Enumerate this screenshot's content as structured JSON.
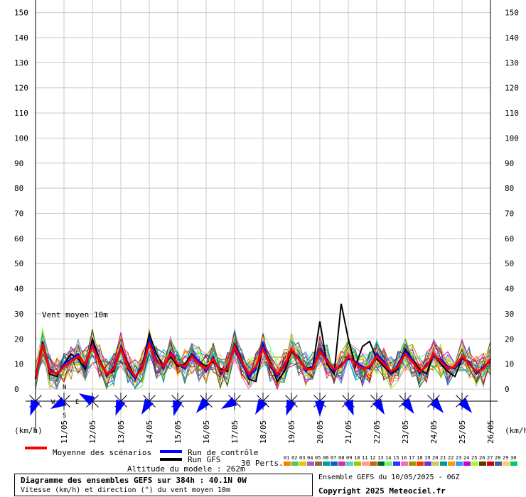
{
  "chart_data": {
    "type": "line",
    "annotation": "Vent moyen 10m",
    "unit_left": "(km/h)",
    "unit_right": "(km/h)",
    "ylim": [
      0,
      155
    ],
    "yticks": [
      0,
      10,
      20,
      30,
      40,
      50,
      60,
      70,
      80,
      90,
      100,
      110,
      120,
      130,
      140,
      150
    ],
    "xlim": [
      0,
      64
    ],
    "date_ticks": [
      {
        "x": 4,
        "label": "11/05"
      },
      {
        "x": 8,
        "label": "12/05"
      },
      {
        "x": 12,
        "label": "13/05"
      },
      {
        "x": 16,
        "label": "14/05"
      },
      {
        "x": 20,
        "label": "15/05"
      },
      {
        "x": 24,
        "label": "16/05"
      },
      {
        "x": 28,
        "label": "17/05"
      },
      {
        "x": 32,
        "label": "18/05"
      },
      {
        "x": 36,
        "label": "19/05"
      },
      {
        "x": 40,
        "label": "20/05"
      },
      {
        "x": 44,
        "label": "21/05"
      },
      {
        "x": 48,
        "label": "22/05"
      },
      {
        "x": 52,
        "label": "23/05"
      },
      {
        "x": 56,
        "label": "24/05"
      },
      {
        "x": 60,
        "label": "25/05"
      },
      {
        "x": 64,
        "label": "26/05"
      }
    ],
    "series": [
      {
        "name": "Moyenne des scénarios",
        "color": "#ff0000",
        "values": [
          4,
          18,
          7,
          6,
          9,
          11,
          13,
          10,
          17,
          11,
          6,
          8,
          16,
          9,
          5,
          8,
          18,
          11,
          9,
          14,
          10,
          9,
          13,
          10,
          8,
          12,
          7,
          8,
          17,
          11,
          6,
          9,
          16,
          10,
          6,
          9,
          16,
          12,
          8,
          8,
          15,
          11,
          8,
          9,
          13,
          10,
          8,
          9,
          13,
          10,
          7,
          9,
          14,
          11,
          7,
          9,
          14,
          11,
          8,
          9,
          13,
          10,
          7,
          8,
          12
        ]
      },
      {
        "name": "Run de contrôle",
        "color": "#0000ff",
        "values": [
          5,
          19,
          8,
          6,
          10,
          12,
          14,
          9,
          18,
          12,
          5,
          9,
          17,
          8,
          4,
          9,
          20,
          12,
          8,
          15,
          10,
          8,
          14,
          11,
          7,
          13,
          6,
          9,
          16,
          10,
          5,
          8,
          18,
          9,
          5,
          10,
          15,
          13,
          7,
          9,
          16,
          12,
          7,
          10,
          12,
          11,
          9,
          8,
          14,
          11,
          6,
          10,
          15,
          12,
          6,
          10,
          13,
          12,
          9,
          8,
          12,
          11,
          6,
          9,
          11
        ]
      },
      {
        "name": "Run GFS",
        "color": "#000000",
        "values": [
          4,
          18,
          6,
          5,
          10,
          14,
          12,
          8,
          20,
          12,
          6,
          7,
          17,
          10,
          5,
          9,
          22,
          14,
          9,
          13,
          9,
          10,
          14,
          11,
          9,
          11,
          8,
          7,
          18,
          12,
          4,
          3,
          17,
          11,
          3,
          7,
          15,
          12,
          8,
          9,
          27,
          10,
          6,
          34,
          20,
          9,
          17,
          19,
          12,
          9,
          6,
          8,
          16,
          12,
          8,
          6,
          14,
          10,
          7,
          5,
          12,
          11,
          6,
          9,
          11
        ]
      }
    ],
    "member_count": 30,
    "member_colors": [
      "#ff7f00",
      "#5fbf5f",
      "#e6c800",
      "#9966cc",
      "#996633",
      "#00a0a0",
      "#0066cc",
      "#cc3399",
      "#66cccc",
      "#99cc00",
      "#ff9999",
      "#cc6600",
      "#006633",
      "#66ff66",
      "#3333ff",
      "#ff66cc",
      "#999900",
      "#ff3300",
      "#6633cc",
      "#cccc66",
      "#009999",
      "#ff9900",
      "#3399ff",
      "#cc00cc",
      "#99ff33",
      "#663300",
      "#cc0000",
      "#336699",
      "#ffcc66",
      "#00cc66"
    ]
  },
  "legend": {
    "mean_label": "Moyenne des scénarios",
    "control_label": "Run de contrôle",
    "gfs_label": "Run GFS",
    "altitude": "Altitude du modele : 262m",
    "perts_label": "30 Perts.",
    "member_numbers": [
      "01",
      "02",
      "03",
      "04",
      "05",
      "06",
      "07",
      "08",
      "09",
      "10",
      "11",
      "12",
      "13",
      "14",
      "15",
      "16",
      "17",
      "18",
      "19",
      "20",
      "21",
      "22",
      "23",
      "24",
      "25",
      "26",
      "27",
      "28",
      "29",
      "30"
    ]
  },
  "wind_directions": {
    "compass": {
      "n": "N",
      "s": "S",
      "e": "E",
      "w": "W"
    },
    "headings_deg": [
      200,
      240,
      300,
      200,
      210,
      195,
      220,
      240,
      210,
      200,
      180,
      160,
      150,
      145,
      140,
      140
    ]
  },
  "footer": {
    "title": "Diagramme des ensembles GEFS sur 384h : 40.1N 0W",
    "subtitle": "Vitesse (km/h) et direction (°) du vent moyen 10m",
    "run_info": "Ensemble GEFS du 10/05/2025 - 06Z",
    "copyright": "Copyright 2025 Meteociel.fr"
  }
}
